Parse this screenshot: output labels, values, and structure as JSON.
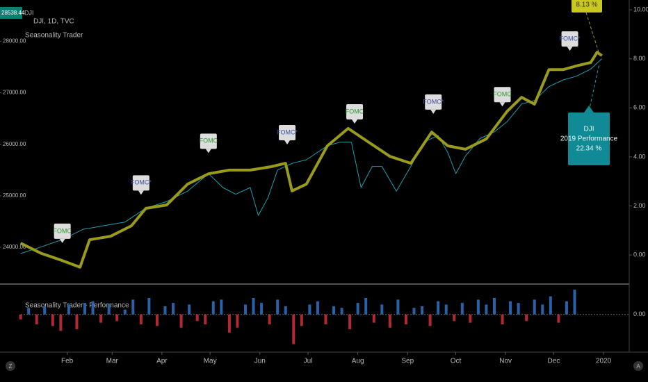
{
  "header": {
    "price": "28538.44",
    "symbol": "DJI",
    "info": "DJI, 1D, TVC",
    "indicator": "Seasonality Trader"
  },
  "chart_data": [
    {
      "type": "line",
      "xlim": [
        1,
        382
      ],
      "xticks": [
        {
          "value": 32,
          "label": "Feb"
        },
        {
          "value": 60,
          "label": "Mar"
        },
        {
          "value": 91,
          "label": "Apr"
        },
        {
          "value": 121,
          "label": "May"
        },
        {
          "value": 152,
          "label": "Jun"
        },
        {
          "value": 182,
          "label": "Jul"
        },
        {
          "value": 213,
          "label": "Aug"
        },
        {
          "value": 244,
          "label": "Sep"
        },
        {
          "value": 274,
          "label": "Oct"
        },
        {
          "value": 305,
          "label": "Nov"
        },
        {
          "value": 335,
          "label": "Dec"
        },
        {
          "value": 366,
          "label": "2020"
        }
      ],
      "ylim": [
        23300,
        28800
      ],
      "yticks": [
        {
          "value": 24000,
          "label": "24000.00"
        },
        {
          "value": 25000,
          "label": "25000.00"
        },
        {
          "value": 26000,
          "label": "26000.00"
        },
        {
          "value": 27000,
          "label": "27000.00"
        },
        {
          "value": 28000,
          "label": "28000.00"
        }
      ],
      "y2lim": [
        -1.16,
        10.4
      ],
      "y2ticks": [
        {
          "value": 0,
          "label": "0.00"
        },
        {
          "value": 2,
          "label": "2.00"
        },
        {
          "value": 4,
          "label": "4.00"
        },
        {
          "value": 6,
          "label": "6.00"
        },
        {
          "value": 8,
          "label": "8.00"
        },
        {
          "value": 10,
          "label": "10.00"
        }
      ],
      "series": [
        {
          "name": "DJI",
          "color": "#1f9fb0",
          "width": 1,
          "x": [
            3,
            16,
            29,
            42,
            55,
            68,
            81,
            94,
            107,
            120,
            129,
            137,
            146,
            151,
            157,
            163,
            172,
            181,
            194,
            202,
            209,
            215,
            222,
            228,
            237,
            246,
            254,
            263,
            269,
            274,
            280,
            289,
            298,
            306,
            315,
            323,
            332,
            341,
            349,
            358,
            365
          ],
          "values": [
            23880,
            24010,
            24150,
            24350,
            24420,
            24490,
            24760,
            24890,
            25090,
            25430,
            25160,
            25030,
            25160,
            24620,
            24960,
            25500,
            25630,
            25700,
            25970,
            26040,
            26040,
            25160,
            25570,
            25570,
            25090,
            25570,
            26040,
            26170,
            25840,
            25430,
            25770,
            26110,
            26240,
            26440,
            26780,
            26850,
            27120,
            27250,
            27320,
            27460,
            27660
          ]
        },
        {
          "name": "Seasonality Trader",
          "color": "#9a9a1c",
          "width": 4,
          "axis": "y2",
          "x": [
            3,
            16,
            29,
            40,
            46,
            59,
            72,
            81,
            94,
            107,
            120,
            133,
            146,
            159,
            168,
            172,
            181,
            194,
            207,
            220,
            233,
            246,
            259,
            269,
            280,
            293,
            306,
            315,
            323,
            332,
            341,
            349,
            358,
            362,
            365
          ],
          "values": [
            0.48,
            0.06,
            -0.23,
            -0.5,
            0.62,
            0.76,
            1.19,
            1.9,
            2.04,
            2.89,
            3.31,
            3.46,
            3.46,
            3.6,
            3.74,
            2.61,
            2.89,
            4.45,
            5.16,
            4.59,
            4.02,
            3.74,
            5.01,
            4.45,
            4.31,
            4.73,
            5.86,
            6.43,
            6.15,
            7.56,
            7.56,
            7.71,
            7.85,
            8.27,
            8.13
          ]
        }
      ],
      "annotations": [
        {
          "label": "FOMC",
          "color": "#2e9a2e",
          "x": 29,
          "y": 0.43
        },
        {
          "label": "FOMC*",
          "color": "#3a4fa0",
          "x": 78,
          "y": 2.4
        },
        {
          "label": "FOMC",
          "color": "#2e9a2e",
          "x": 120,
          "y": 4.1
        },
        {
          "label": "FOMC*",
          "color": "#3a4fa0",
          "x": 169,
          "y": 4.45
        },
        {
          "label": "FOMC",
          "color": "#2e9a2e",
          "x": 211,
          "y": 5.3
        },
        {
          "label": "FOMC*",
          "color": "#3a4fa0",
          "x": 260,
          "y": 5.7
        },
        {
          "label": "FOMC",
          "color": "#2e9a2e",
          "x": 303,
          "y": 6.0
        },
        {
          "label": "FOMC*",
          "color": "#3a4fa0",
          "x": 345,
          "y": 8.27
        }
      ],
      "callouts": {
        "season": "8.13 %",
        "dji": [
          "DJI",
          "2019 Performance",
          "22.34 %"
        ]
      }
    },
    {
      "type": "bar",
      "title": "Seasonality Trader - Performance",
      "ylim": [
        -1.1,
        0.9
      ],
      "yticks": [
        {
          "value": 0,
          "label": "0.00"
        }
      ],
      "colors": {
        "positive": "#2962a8",
        "negative": "#b22833"
      },
      "x": [
        3,
        8,
        13,
        18,
        23,
        28,
        33,
        38,
        43,
        48,
        53,
        58,
        63,
        68,
        73,
        78,
        83,
        88,
        93,
        98,
        103,
        108,
        113,
        118,
        123,
        128,
        133,
        138,
        143,
        148,
        153,
        158,
        163,
        168,
        173,
        178,
        183,
        188,
        193,
        198,
        203,
        208,
        213,
        218,
        223,
        228,
        233,
        238,
        243,
        248,
        253,
        258,
        263,
        268,
        273,
        278,
        283,
        288,
        293,
        298,
        303,
        308,
        313,
        318,
        323,
        328,
        333,
        338,
        343,
        348
      ],
      "values": [
        -0.15,
        0.2,
        -0.3,
        0.25,
        -0.35,
        -0.5,
        0.3,
        -0.45,
        0.35,
        0.4,
        -0.25,
        0.3,
        -0.2,
        0.15,
        0.45,
        -0.3,
        0.5,
        -0.35,
        0.25,
        0.35,
        -0.4,
        0.3,
        -0.2,
        -0.3,
        0.4,
        0.45,
        -0.55,
        -0.4,
        0.3,
        0.5,
        0.35,
        -0.3,
        0.45,
        0.25,
        -0.9,
        -0.35,
        0.3,
        0.4,
        -0.3,
        0.25,
        0.2,
        -0.45,
        0.35,
        0.5,
        -0.25,
        0.3,
        -0.4,
        0.45,
        -0.3,
        0.2,
        0.25,
        -0.35,
        0.4,
        0.3,
        -0.2,
        0.35,
        -0.25,
        0.45,
        0.3,
        0.5,
        -0.3,
        0.4,
        0.35,
        -0.2,
        0.45,
        0.3,
        0.55,
        -0.25,
        0.4,
        0.75
      ]
    }
  ]
}
